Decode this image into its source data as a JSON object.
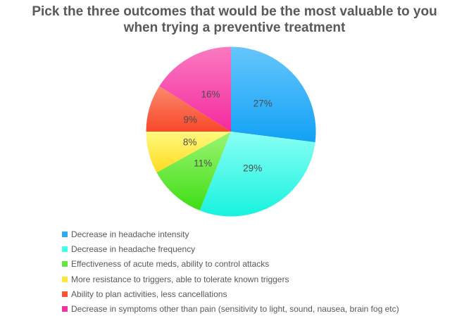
{
  "page": {
    "background_color": "#FFFFFF"
  },
  "header": {
    "title_line1": "Pick the three outcomes that would be the most valuable to you",
    "title_line2": "when trying a preventive treatment",
    "title_color": "#58595B"
  },
  "chart_data": {
    "type": "pie",
    "title": "Pick the three outcomes that would be the most valuable to you when trying a preventive treatment",
    "label_suffix": "%",
    "label_color": "#4D4D4D",
    "legend_position": "bottom-left",
    "rotation": "starts at 12 o'clock, clockwise",
    "categories": [
      "Decrease in headache intensity",
      "Decrease in headache frequency",
      "Effectiveness of acute meds, ability to control attacks",
      "More resistance to triggers, able to tolerate known triggers",
      "Ability to plan activities, less cancellations",
      "Decrease in symptoms other than pain (sensitivity to light, sound, nausea, brain fog etc)"
    ],
    "values": [
      27,
      29,
      11,
      8,
      9,
      16
    ],
    "slices": [
      {
        "label": "Decrease in headache intensity",
        "value_pct": 27,
        "display_label": "27%",
        "color_light": "#66C6FB",
        "color_dark": "#12A1F6",
        "legend_color": "#2FA9F2"
      },
      {
        "label": "Decrease in headache frequency",
        "value_pct": 29,
        "display_label": "29%",
        "color_light": "#8AFFF5",
        "color_dark": "#17F2DE",
        "legend_color": "#40FFE9"
      },
      {
        "label": "Effectiveness of acute meds, ability to control attacks",
        "value_pct": 11,
        "display_label": "11%",
        "color_light": "#9CF573",
        "color_dark": "#3FDD16",
        "legend_color": "#61E83C"
      },
      {
        "label": "More resistance to triggers, able to tolerate known triggers",
        "value_pct": 8,
        "display_label": "8%",
        "color_light": "#FFF97E",
        "color_dark": "#FFDB1F",
        "legend_color": "#FFE838"
      },
      {
        "label": "Ability to plan activities, less cancellations",
        "value_pct": 9,
        "display_label": "9%",
        "color_light": "#FB8A6D",
        "color_dark": "#F9472A",
        "legend_color": "#F95237"
      },
      {
        "label": "Decrease in symptoms other than pain (sensitivity to light, sound, nausea, brain fog etc)",
        "value_pct": 16,
        "display_label": "16%",
        "color_light": "#FB7AC1",
        "color_dark": "#F32A9E",
        "legend_color": "#F9309F"
      }
    ]
  }
}
